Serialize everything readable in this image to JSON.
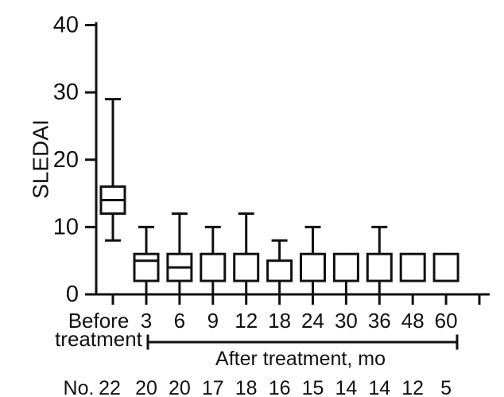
{
  "figure": {
    "background_color": "#ffffff",
    "ink_color": "#111111"
  },
  "chart_data": {
    "type": "box",
    "title": "",
    "ylabel": "SLEDAI",
    "xlabel": "",
    "ylim": [
      0,
      40
    ],
    "yticks": [
      0,
      10,
      20,
      30,
      40
    ],
    "grid": false,
    "legend": false,
    "x_group_bracket_label": "After treatment, mo",
    "x_group_bracket_span": [
      "3",
      "60"
    ],
    "counts_row_label": "No.",
    "categories": [
      "Before treatment",
      "3",
      "6",
      "9",
      "12",
      "18",
      "24",
      "30",
      "36",
      "48",
      "60"
    ],
    "counts": [
      22,
      20,
      20,
      17,
      18,
      16,
      15,
      14,
      14,
      12,
      5
    ],
    "boxes": [
      {
        "category": "Before treatment",
        "label_lines": [
          "Before",
          "treatment"
        ],
        "n": 22,
        "whisker_low": 8,
        "q1": 12,
        "median": 14,
        "q3": 16,
        "whisker_high": 29
      },
      {
        "category": "3",
        "n": 20,
        "whisker_low": 0,
        "q1": 2,
        "median": 5,
        "q3": 6,
        "whisker_high": 10
      },
      {
        "category": "6",
        "n": 20,
        "whisker_low": 0,
        "q1": 2,
        "median": 4,
        "q3": 6,
        "whisker_high": 12
      },
      {
        "category": "9",
        "n": 17,
        "whisker_low": 0,
        "q1": 2,
        "median": null,
        "q3": 6,
        "whisker_high": 10
      },
      {
        "category": "12",
        "n": 18,
        "whisker_low": 0,
        "q1": 2,
        "median": null,
        "q3": 6,
        "whisker_high": 12
      },
      {
        "category": "18",
        "n": 16,
        "whisker_low": 0,
        "q1": 2,
        "median": null,
        "q3": 5,
        "whisker_high": 8
      },
      {
        "category": "24",
        "n": 15,
        "whisker_low": 0,
        "q1": 2,
        "median": null,
        "q3": 6,
        "whisker_high": 10
      },
      {
        "category": "30",
        "n": 14,
        "whisker_low": 0,
        "q1": 2,
        "median": null,
        "q3": 6,
        "whisker_high": null
      },
      {
        "category": "36",
        "n": 14,
        "whisker_low": 0,
        "q1": 2,
        "median": null,
        "q3": 6,
        "whisker_high": 10
      },
      {
        "category": "48",
        "n": 12,
        "whisker_low": null,
        "q1": 2,
        "median": null,
        "q3": 6,
        "whisker_high": null
      },
      {
        "category": "60",
        "n": 5,
        "whisker_low": null,
        "q1": 2,
        "median": null,
        "q3": 6,
        "whisker_high": null
      }
    ]
  }
}
